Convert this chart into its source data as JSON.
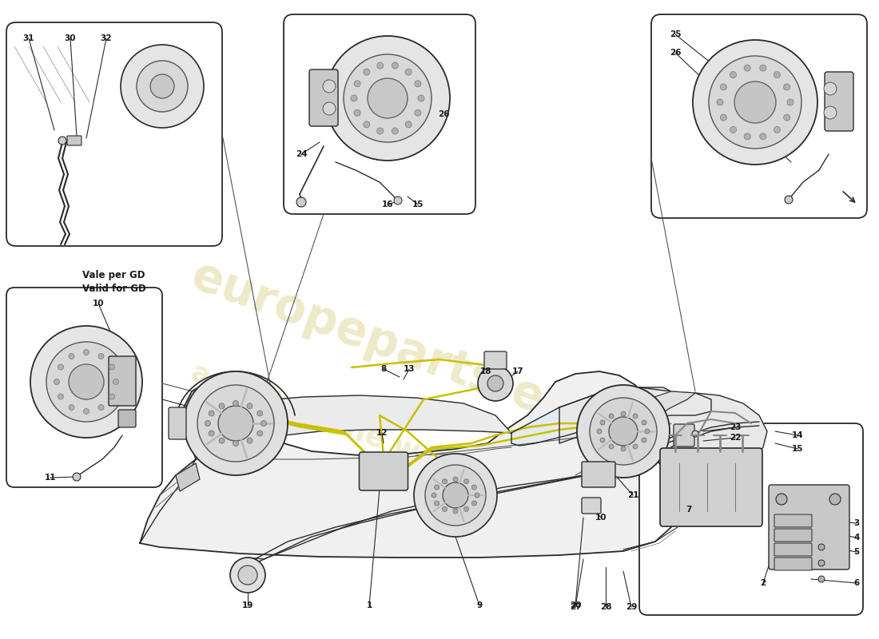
{
  "bg_color": "#ffffff",
  "watermark_color": "#c8b84a",
  "watermark_text": "europeparts.eu",
  "watermark_text2": "a part of the world",
  "line_color": "#2a2a2a",
  "car_fill": "#f2f2f2",
  "car_stroke": "#2a2a2a",
  "brake_line_color": "#c8c000",
  "box_edge_color": "#2a2a2a",
  "label_fontsize": 7.5,
  "bold_fontsize": 8.5,
  "vale_text": "Vale per GD\nValid for GD"
}
